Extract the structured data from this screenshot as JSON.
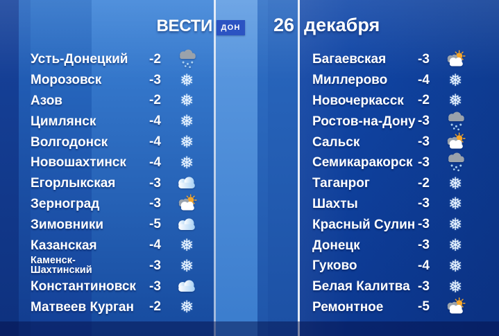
{
  "header": {
    "brand": "ВЕСТИ",
    "region": "ДОН",
    "date": {
      "day": "26",
      "month": "декабря"
    }
  },
  "colors": {
    "badge_bg": "#2b53c2",
    "sun": "#f5a72c",
    "cloud_gray": "#9aa2ab",
    "cloud_blue": "#a6d0f4",
    "snow_dot": "#a9d0f2",
    "snow_flake": "#e8f3ff",
    "panel_blue": "#2e74cc",
    "deep_blue": "#0d3f9e"
  },
  "chart_data": {
    "type": "table",
    "title": "26 декабря",
    "groups": [
      {
        "rows": [
          {
            "city": "Усть-Донецкий",
            "temp": -2,
            "icon": "snow-cloud"
          },
          {
            "city": "Морозовск",
            "temp": -3,
            "icon": "snowflake"
          },
          {
            "city": "Азов",
            "temp": -2,
            "icon": "snowflake"
          },
          {
            "city": "Цимлянск",
            "temp": -4,
            "icon": "snowflake"
          },
          {
            "city": "Волгодонск",
            "temp": -4,
            "icon": "snowflake"
          },
          {
            "city": "Новошахтинск",
            "temp": -4,
            "icon": "snowflake"
          },
          {
            "city": "Егорлыкская",
            "temp": -3,
            "icon": "cloud"
          },
          {
            "city": "Зерноград",
            "temp": -3,
            "icon": "sun-cloud"
          },
          {
            "city": "Зимовники",
            "temp": -5,
            "icon": "cloud"
          },
          {
            "city": "Казанская",
            "temp": -4,
            "icon": "snowflake"
          },
          {
            "city": "Каменск-\nШахтинский",
            "temp": -3,
            "icon": "snowflake",
            "small": true
          },
          {
            "city": "Константиновск",
            "temp": -3,
            "icon": "cloud"
          },
          {
            "city": "Матвеев Курган",
            "temp": -2,
            "icon": "snowflake"
          }
        ]
      },
      {
        "rows": [
          {
            "city": "Багаевская",
            "temp": -3,
            "icon": "sun-cloud"
          },
          {
            "city": "Миллерово",
            "temp": -4,
            "icon": "snowflake"
          },
          {
            "city": "Новочеркасск",
            "temp": -2,
            "icon": "snowflake"
          },
          {
            "city": "Ростов-на-Дону",
            "temp": -3,
            "icon": "snow-cloud"
          },
          {
            "city": "Сальск",
            "temp": -3,
            "icon": "sun-cloud"
          },
          {
            "city": "Семикаракорск",
            "temp": -3,
            "icon": "snow-cloud"
          },
          {
            "city": "Таганрог",
            "temp": -2,
            "icon": "snowflake"
          },
          {
            "city": "Шахты",
            "temp": -3,
            "icon": "snowflake"
          },
          {
            "city": "Красный Сулин",
            "temp": -3,
            "icon": "snowflake"
          },
          {
            "city": "Донецк",
            "temp": -3,
            "icon": "snowflake"
          },
          {
            "city": "Гуково",
            "temp": -4,
            "icon": "snowflake"
          },
          {
            "city": "Белая Калитва",
            "temp": -3,
            "icon": "snowflake"
          },
          {
            "city": "Ремонтное",
            "temp": -5,
            "icon": "sun-cloud"
          }
        ]
      }
    ]
  }
}
